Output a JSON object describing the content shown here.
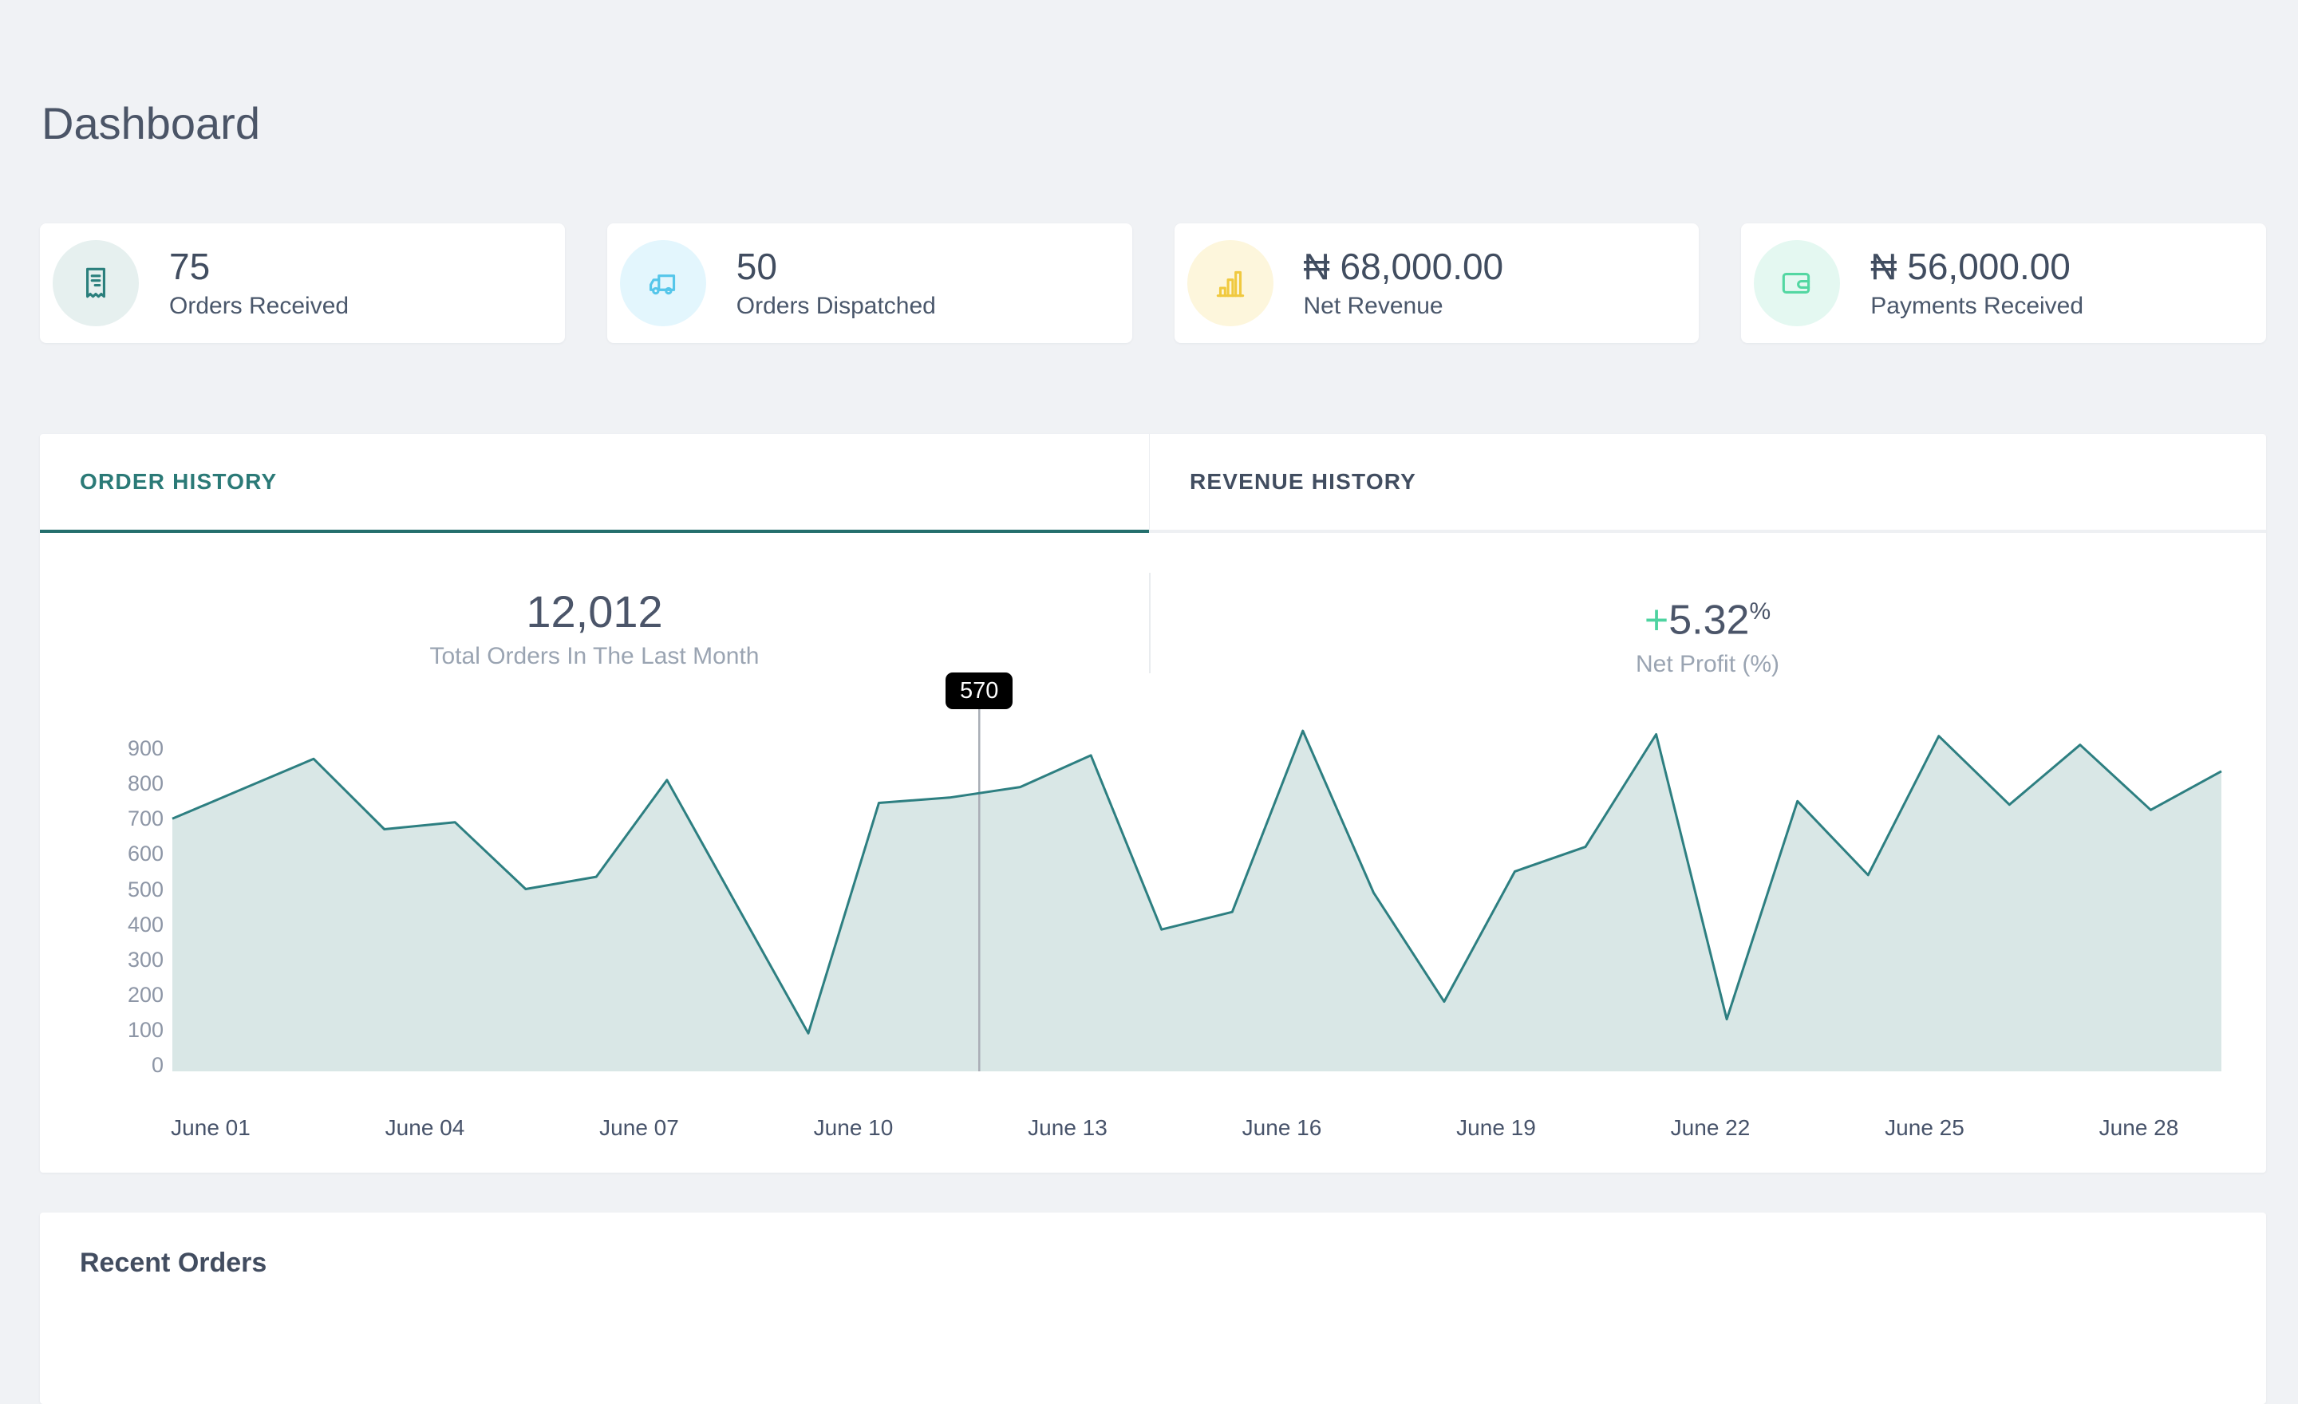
{
  "page": {
    "title": "Dashboard"
  },
  "theme": {
    "page_bg": "#f0f2f5",
    "card_bg": "#ffffff",
    "accent_teal": "#2a7a78",
    "text_dark": "#414d60",
    "text_muted": "#9aa4b2"
  },
  "stats": [
    {
      "value": "75",
      "label": "Orders Received",
      "icon": "receipt-icon",
      "icon_color": "#2a7f7c",
      "icon_bg": "#e6f0ef"
    },
    {
      "value": "50",
      "label": "Orders Dispatched",
      "icon": "truck-icon",
      "icon_color": "#55c6ea",
      "icon_bg": "#e3f6fd"
    },
    {
      "value": "₦ 68,000.00",
      "label": "Net Revenue",
      "icon": "bar-chart-icon",
      "icon_color": "#f0c93f",
      "icon_bg": "#fdf6dc"
    },
    {
      "value": "₦ 56,000.00",
      "label": "Payments Received",
      "icon": "wallet-icon",
      "icon_color": "#53d7a2",
      "icon_bg": "#e4f8f1"
    }
  ],
  "tabs": [
    {
      "label": "ORDER HISTORY",
      "active": true
    },
    {
      "label": "REVENUE HISTORY",
      "active": false
    }
  ],
  "summary": {
    "orders": {
      "value": "12,012",
      "caption": "Total Orders In The Last Month"
    },
    "profit": {
      "sign": "+",
      "value": "5.32",
      "unit": "%",
      "caption": "Net Profit (%)"
    }
  },
  "chart_data": {
    "type": "area",
    "title": "Order History - total orders per day",
    "x": [
      "June 01",
      "June 02",
      "June 03",
      "June 04",
      "June 05",
      "June 06",
      "June 07",
      "June 08",
      "June 09",
      "June 10",
      "June 11",
      "June 12",
      "June 13",
      "June 14",
      "June 15",
      "June 16",
      "June 17",
      "June 18",
      "June 19",
      "June 20",
      "June 21",
      "June 22",
      "June 23",
      "June 24",
      "June 25",
      "June 26",
      "June 27",
      "June 28",
      "June 29",
      "June 30"
    ],
    "values": [
      700,
      785,
      870,
      670,
      690,
      500,
      535,
      810,
      450,
      90,
      745,
      760,
      790,
      880,
      385,
      435,
      950,
      490,
      180,
      550,
      620,
      940,
      130,
      750,
      540,
      935,
      740,
      910,
      725,
      835
    ],
    "x_tick_labels": [
      "June 01",
      "June 04",
      "June 07",
      "June 10",
      "June 13",
      "June 16",
      "June 19",
      "June 22",
      "June 25",
      "June 28"
    ],
    "y_ticks": [
      0,
      100,
      200,
      300,
      400,
      500,
      600,
      700,
      800,
      900
    ],
    "ylim": [
      0,
      900
    ],
    "grid": false,
    "legend": false,
    "line_color": "#2d7f81",
    "fill_color": "#d9e7e6",
    "tooltip": {
      "label": "570",
      "day_position": 11.42,
      "bg": "#000000",
      "text_color": "#ffffff"
    },
    "hover_line_color": "#a9aeb6"
  },
  "recent_orders": {
    "title": "Recent Orders"
  }
}
